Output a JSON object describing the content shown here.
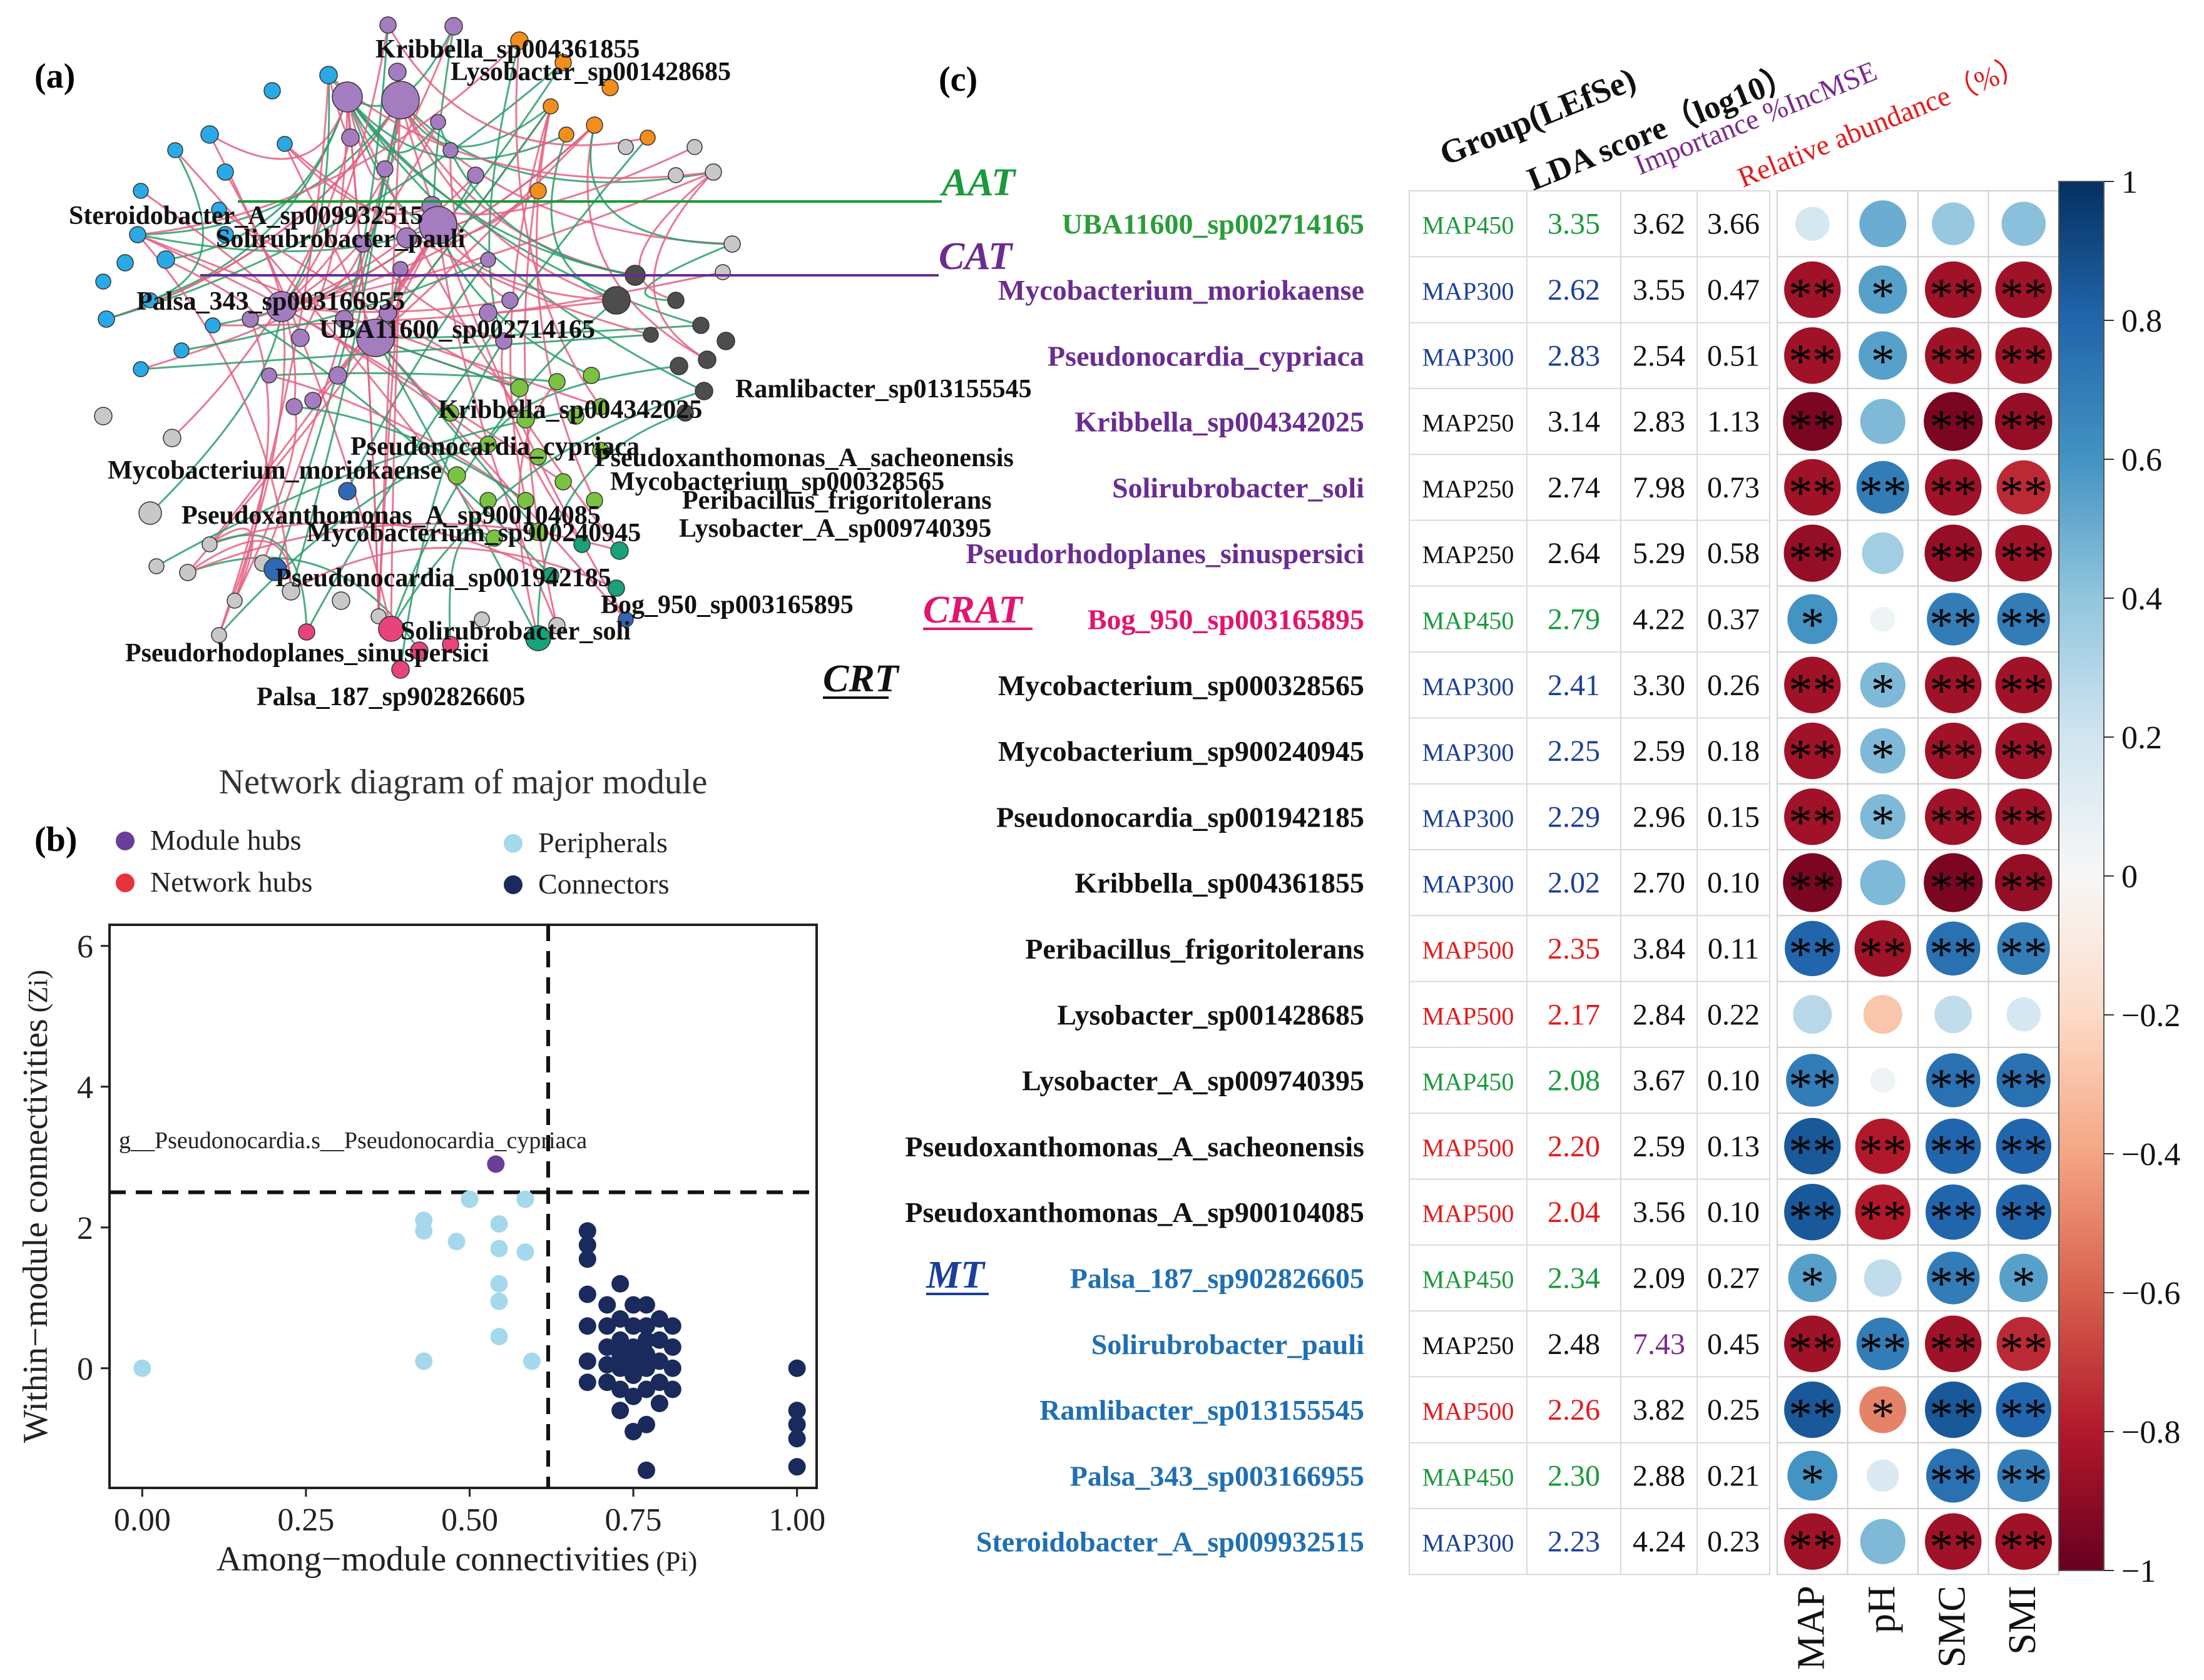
{
  "panel_labels": {
    "a": "(a)",
    "b": "(b)",
    "c": "(c)"
  },
  "colors": {
    "purple": "#a47cc0",
    "cyan": "#29a9e6",
    "orange": "#f28e1c",
    "grey": "#c8c8c8",
    "dark": "#4d4d4d",
    "green": "#7cc242",
    "pink": "#e8437d",
    "teal": "#17a27a",
    "blue": "#3168b5",
    "edge_pos": "#e36283",
    "edge_neg": "#2a9d6b"
  },
  "panel_a": {
    "caption": "Network diagram of major module",
    "node_labels": [
      "Kribbella_sp004361855",
      "Lysobacter_sp001428685",
      "Steroidobacter_A_sp009932515",
      "Solirubrobacter_pauli",
      "Palsa_343_sp003166955",
      "UBA11600_sp002714165",
      "Ramlibacter_sp013155545",
      "Kribbella_sp004342025",
      "Pseudonocardia_cypriaca",
      "Pseudoxanthomonas_A_sacheonensis",
      "Mycobacterium_moriokaense",
      "Mycobacterium_sp000328565",
      "Peribacillus_frigoritolerans",
      "Pseudoxanthomonas_A_sp900104085",
      "Mycobacterium_sp900240945",
      "Lysobacter_A_sp009740395",
      "Pseudonocardia_sp001942185",
      "Bog_950_sp003165895",
      "Solirubrobacter_soli",
      "Pseudorhodoplanes_sinuspersici",
      "Palsa_187_sp902826605"
    ]
  },
  "chart_data": [
    {
      "type": "scatter",
      "title": "",
      "xlabel": "Among−module connectivities",
      "xlabel_unit": "(Pi)",
      "ylabel": "Within−module connectivities",
      "ylabel_unit": "(Zi)",
      "xlim": [
        -0.05,
        1.03
      ],
      "ylim": [
        -1.7,
        6.3
      ],
      "xticks": [
        "0.00",
        "0.25",
        "0.50",
        "0.75",
        "1.00"
      ],
      "yticks": [
        "0",
        "2",
        "4",
        "6"
      ],
      "thresholds": {
        "pi": 0.62,
        "zi": 2.5
      },
      "legend": [
        {
          "label": "Module hubs",
          "color": "#6a3d9a"
        },
        {
          "label": "Peripherals",
          "color": "#a6d8ec"
        },
        {
          "label": "Network hubs",
          "color": "#e8333a"
        },
        {
          "label": "Connectors",
          "color": "#1b2a5c"
        }
      ],
      "annotation": "g__Pseudonocardia.s__Pseudonocardia_cypriaca",
      "series": [
        {
          "name": "Module hubs",
          "color": "#6a3d9a",
          "points": [
            [
              0.54,
              2.9
            ]
          ]
        },
        {
          "name": "Peripherals",
          "color": "#a6d8ec",
          "points": [
            [
              0.0,
              0.0
            ],
            [
              0.43,
              2.1
            ],
            [
              0.43,
              1.95
            ],
            [
              0.43,
              0.1
            ],
            [
              0.48,
              1.8
            ],
            [
              0.5,
              2.4
            ],
            [
              0.545,
              2.05
            ],
            [
              0.545,
              1.7
            ],
            [
              0.545,
              1.2
            ],
            [
              0.545,
              0.95
            ],
            [
              0.545,
              0.45
            ],
            [
              0.585,
              2.4
            ],
            [
              0.585,
              1.65
            ],
            [
              0.595,
              0.1
            ]
          ]
        },
        {
          "name": "Connectors",
          "color": "#1b2a5c",
          "points": [
            [
              0.68,
              1.95
            ],
            [
              0.68,
              1.75
            ],
            [
              0.68,
              1.55
            ],
            [
              0.68,
              1.05
            ],
            [
              0.68,
              0.6
            ],
            [
              0.68,
              0.1
            ],
            [
              0.68,
              -0.2
            ],
            [
              0.71,
              0.9
            ],
            [
              0.71,
              0.6
            ],
            [
              0.71,
              0.3
            ],
            [
              0.71,
              0.05
            ],
            [
              0.71,
              -0.2
            ],
            [
              0.73,
              1.2
            ],
            [
              0.73,
              0.7
            ],
            [
              0.73,
              0.4
            ],
            [
              0.73,
              0.2
            ],
            [
              0.73,
              0.0
            ],
            [
              0.73,
              -0.3
            ],
            [
              0.73,
              -0.6
            ],
            [
              0.75,
              0.9
            ],
            [
              0.75,
              0.6
            ],
            [
              0.75,
              0.3
            ],
            [
              0.75,
              0.1
            ],
            [
              0.75,
              -0.1
            ],
            [
              0.75,
              -0.4
            ],
            [
              0.75,
              -0.9
            ],
            [
              0.77,
              0.9
            ],
            [
              0.77,
              0.6
            ],
            [
              0.77,
              0.4
            ],
            [
              0.77,
              0.2
            ],
            [
              0.77,
              0.0
            ],
            [
              0.77,
              -0.3
            ],
            [
              0.77,
              -0.8
            ],
            [
              0.77,
              -1.45
            ],
            [
              0.79,
              0.7
            ],
            [
              0.79,
              0.4
            ],
            [
              0.79,
              0.1
            ],
            [
              0.79,
              -0.2
            ],
            [
              0.79,
              -0.5
            ],
            [
              0.81,
              0.6
            ],
            [
              0.81,
              0.3
            ],
            [
              0.81,
              0.0
            ],
            [
              0.81,
              -0.3
            ],
            [
              1.0,
              0.0
            ],
            [
              1.0,
              -0.6
            ],
            [
              1.0,
              -0.8
            ],
            [
              1.0,
              -1.0
            ],
            [
              1.0,
              -1.4
            ]
          ]
        }
      ]
    },
    {
      "type": "heatmap",
      "columns": [
        "MAP",
        "pH",
        "SMC",
        "SMI"
      ],
      "table_headers": [
        "Group(LEfSe)",
        "LDA score（log10）",
        "Importance %IncMSE",
        "Relative abundance（%）"
      ],
      "colorbar": {
        "min": -1,
        "max": 1,
        "ticks": [
          "1",
          "0.8",
          "0.6",
          "0.4",
          "0.2",
          "0",
          "−0.2",
          "−0.4",
          "−0.6",
          "−0.8",
          "−1"
        ]
      },
      "enzyme_groups": [
        {
          "name": "AAT",
          "color": "#1a9a3c"
        },
        {
          "name": "CAT",
          "color": "#6a2c91"
        },
        {
          "name": "CRAT",
          "color": "#e2146f"
        },
        {
          "name": "CRT",
          "color": "#111111"
        },
        {
          "name": "MT",
          "color": "#1b3f9a"
        }
      ],
      "rows": [
        {
          "species": "UBA11600_sp002714165",
          "group": "MAP450",
          "lda": "3.35",
          "imp": "3.62",
          "ra": "3.66",
          "vals": [
            0.18,
            0.5,
            0.38,
            0.42
          ],
          "sig": [
            "",
            "",
            "",
            ""
          ]
        },
        {
          "species": "Mycobacterium_moriokaense",
          "group": "MAP300",
          "lda": "2.62",
          "imp": "3.55",
          "ra": "0.47",
          "vals": [
            -0.85,
            0.55,
            -0.85,
            -0.85
          ],
          "sig": [
            "**",
            "*",
            "**",
            "**"
          ]
        },
        {
          "species": "Pseudonocardia_cypriaca",
          "group": "MAP300",
          "lda": "2.83",
          "imp": "2.54",
          "ra": "0.51",
          "vals": [
            -0.85,
            0.55,
            -0.85,
            -0.85
          ],
          "sig": [
            "**",
            "*",
            "**",
            "**"
          ]
        },
        {
          "species": "Kribbella_sp004342025",
          "group": "MAP250",
          "lda": "3.14",
          "imp": "2.83",
          "ra": "1.13",
          "vals": [
            -0.95,
            0.45,
            -0.95,
            -0.88
          ],
          "sig": [
            "**",
            "",
            "**",
            "**"
          ]
        },
        {
          "species": "Solirubrobacter_soli",
          "group": "MAP250",
          "lda": "2.74",
          "imp": "7.98",
          "ra": "0.73",
          "vals": [
            -0.85,
            0.7,
            -0.85,
            -0.75
          ],
          "sig": [
            "**",
            "**",
            "**",
            "**"
          ]
        },
        {
          "species": "Pseudorhodoplanes_sinuspersici",
          "group": "MAP250",
          "lda": "2.64",
          "imp": "5.29",
          "ra": "0.58",
          "vals": [
            -0.88,
            0.35,
            -0.88,
            -0.85
          ],
          "sig": [
            "**",
            "",
            "**",
            "**"
          ]
        },
        {
          "species": "Bog_950_sp003165895",
          "group": "MAP450",
          "lda": "2.79",
          "imp": "4.22",
          "ra": "0.37",
          "vals": [
            0.6,
            0.05,
            0.7,
            0.7
          ],
          "sig": [
            "*",
            "",
            "**",
            "**"
          ]
        },
        {
          "species": "Mycobacterium_sp000328565",
          "group": "MAP300",
          "lda": "2.41",
          "imp": "3.30",
          "ra": "0.26",
          "vals": [
            -0.85,
            0.45,
            -0.85,
            -0.85
          ],
          "sig": [
            "**",
            "*",
            "**",
            "**"
          ]
        },
        {
          "species": "Mycobacterium_sp900240945",
          "group": "MAP300",
          "lda": "2.25",
          "imp": "2.59",
          "ra": "0.18",
          "vals": [
            -0.85,
            0.45,
            -0.85,
            -0.85
          ],
          "sig": [
            "**",
            "*",
            "**",
            "**"
          ]
        },
        {
          "species": "Pseudonocardia_sp001942185",
          "group": "MAP300",
          "lda": "2.29",
          "imp": "2.96",
          "ra": "0.15",
          "vals": [
            -0.85,
            0.45,
            -0.85,
            -0.85
          ],
          "sig": [
            "**",
            "*",
            "**",
            "**"
          ]
        },
        {
          "species": "Kribbella_sp004361855",
          "group": "MAP300",
          "lda": "2.02",
          "imp": "2.70",
          "ra": "0.10",
          "vals": [
            -0.95,
            0.45,
            -0.95,
            -0.88
          ],
          "sig": [
            "**",
            "",
            "**",
            "**"
          ]
        },
        {
          "species": "Peribacillus_frigoritolerans",
          "group": "MAP500",
          "lda": "2.35",
          "imp": "3.84",
          "ra": "0.11",
          "vals": [
            0.8,
            -0.85,
            0.75,
            0.7
          ],
          "sig": [
            "**",
            "**",
            "**",
            "**"
          ]
        },
        {
          "species": "Lysobacter_sp001428685",
          "group": "MAP500",
          "lda": "2.17",
          "imp": "2.84",
          "ra": "0.22",
          "vals": [
            0.28,
            -0.28,
            0.25,
            0.18
          ],
          "sig": [
            "",
            "",
            "",
            ""
          ]
        },
        {
          "species": "Lysobacter_A_sp009740395",
          "group": "MAP450",
          "lda": "2.08",
          "imp": "3.67",
          "ra": "0.10",
          "vals": [
            0.7,
            0.05,
            0.75,
            0.75
          ],
          "sig": [
            "**",
            "",
            "**",
            "**"
          ]
        },
        {
          "species": "Pseudoxanthomonas_A_sacheonensis",
          "group": "MAP500",
          "lda": "2.20",
          "imp": "2.59",
          "ra": "0.13",
          "vals": [
            0.85,
            -0.8,
            0.8,
            0.8
          ],
          "sig": [
            "**",
            "**",
            "**",
            "**"
          ]
        },
        {
          "species": "Pseudoxanthomonas_A_sp900104085",
          "group": "MAP500",
          "lda": "2.04",
          "imp": "3.56",
          "ra": "0.10",
          "vals": [
            0.85,
            -0.8,
            0.8,
            0.8
          ],
          "sig": [
            "**",
            "**",
            "**",
            "**"
          ]
        },
        {
          "species": "Palsa_187_sp902826605",
          "group": "MAP450",
          "lda": "2.34",
          "imp": "2.09",
          "ra": "0.27",
          "vals": [
            0.55,
            0.25,
            0.7,
            0.55
          ],
          "sig": [
            "*",
            "",
            "**",
            "*"
          ]
        },
        {
          "species": "Solirubrobacter_pauli",
          "group": "MAP250",
          "lda": "2.48",
          "imp": "7.43",
          "ra": "0.45",
          "vals": [
            -0.85,
            0.7,
            -0.85,
            -0.75
          ],
          "sig": [
            "**",
            "**",
            "**",
            "**"
          ]
        },
        {
          "species": "Ramlibacter_sp013155545",
          "group": "MAP500",
          "lda": "2.26",
          "imp": "3.82",
          "ra": "0.25",
          "vals": [
            0.85,
            -0.5,
            0.85,
            0.8
          ],
          "sig": [
            "**",
            "*",
            "**",
            "**"
          ]
        },
        {
          "species": "Palsa_343_sp003166955",
          "group": "MAP450",
          "lda": "2.30",
          "imp": "2.88",
          "ra": "0.21",
          "vals": [
            0.6,
            0.15,
            0.75,
            0.7
          ],
          "sig": [
            "*",
            "",
            "**",
            "**"
          ]
        },
        {
          "species": "Steroidobacter_A_sp009932515",
          "group": "MAP300",
          "lda": "2.23",
          "imp": "4.24",
          "ra": "0.23",
          "vals": [
            -0.85,
            0.45,
            -0.85,
            -0.85
          ],
          "sig": [
            "**",
            "",
            "**",
            "**"
          ]
        }
      ]
    }
  ]
}
